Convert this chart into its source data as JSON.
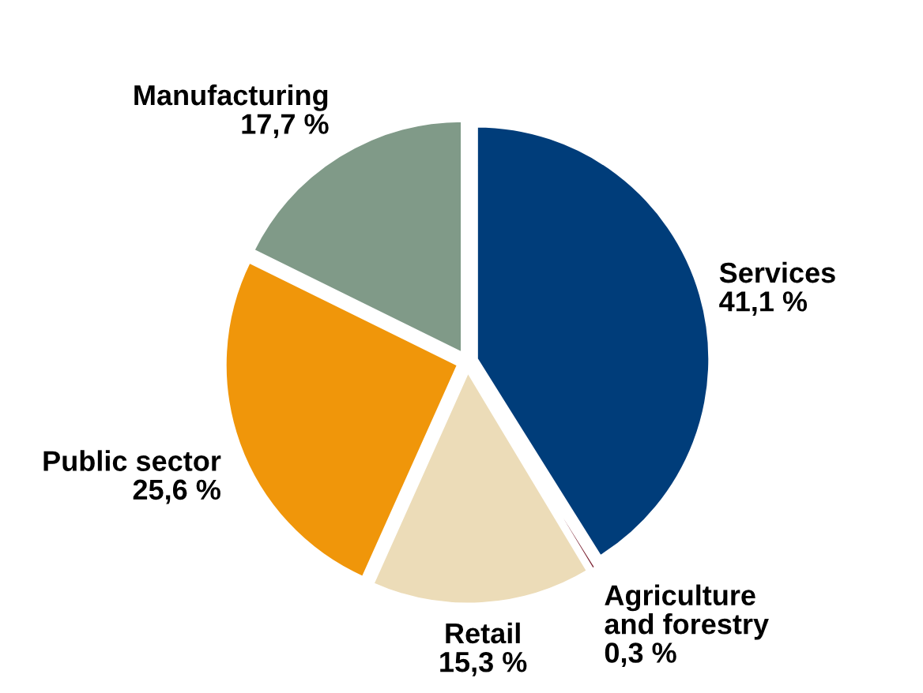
{
  "chart_data": {
    "type": "pie",
    "categories": [
      "Services",
      "Agriculture\nand forestry",
      "Retail",
      "Public sector",
      "Manufacturing"
    ],
    "values": [
      41.1,
      0.3,
      15.3,
      25.6,
      17.7
    ],
    "value_labels": [
      "41,1 %",
      "0,3 %",
      "15,3 %",
      "25,6 %",
      "17,7 %"
    ],
    "colors": [
      "#003d7a",
      "#7a2030",
      "#ecdcb8",
      "#f0960a",
      "#809a88"
    ],
    "legend": false
  }
}
